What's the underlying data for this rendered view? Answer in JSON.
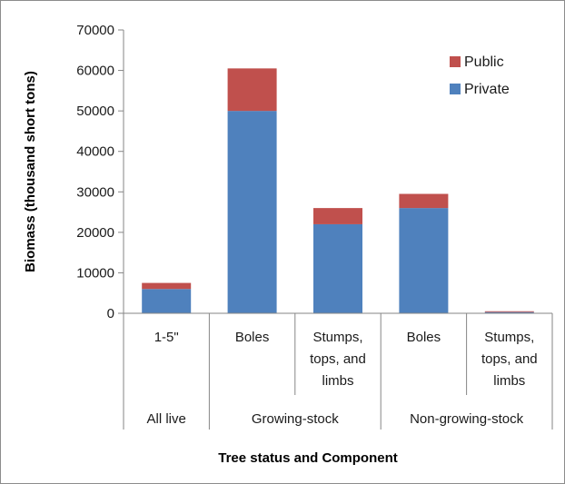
{
  "chart_data": {
    "type": "bar",
    "stacked": true,
    "title": "",
    "xlabel": "Tree status and Component",
    "ylabel": "Biomass (thousand short tons)",
    "ylim": [
      0,
      70000
    ],
    "yticks": [
      0,
      10000,
      20000,
      30000,
      40000,
      50000,
      60000,
      70000
    ],
    "grid": false,
    "legend_position": "top-right",
    "categories": [
      {
        "label": [
          "1-5\""
        ],
        "group": "All live"
      },
      {
        "label": [
          "Boles"
        ],
        "group": "Growing-stock"
      },
      {
        "label": [
          "Stumps,",
          "tops, and",
          "limbs"
        ],
        "group": "Growing-stock"
      },
      {
        "label": [
          "Boles"
        ],
        "group": "Non-growing-stock"
      },
      {
        "label": [
          "Stumps,",
          "tops, and",
          "limbs"
        ],
        "group": "Non-growing-stock"
      }
    ],
    "groups": [
      "All live",
      "Growing-stock",
      "Non-growing-stock"
    ],
    "series": [
      {
        "name": "Private",
        "color": "#4f81bd",
        "values": [
          6000,
          50000,
          22000,
          26000,
          300
        ]
      },
      {
        "name": "Public",
        "color": "#c0504d",
        "values": [
          1500,
          10500,
          4000,
          3500,
          200
        ]
      }
    ],
    "legend_order": [
      "Public",
      "Private"
    ]
  }
}
